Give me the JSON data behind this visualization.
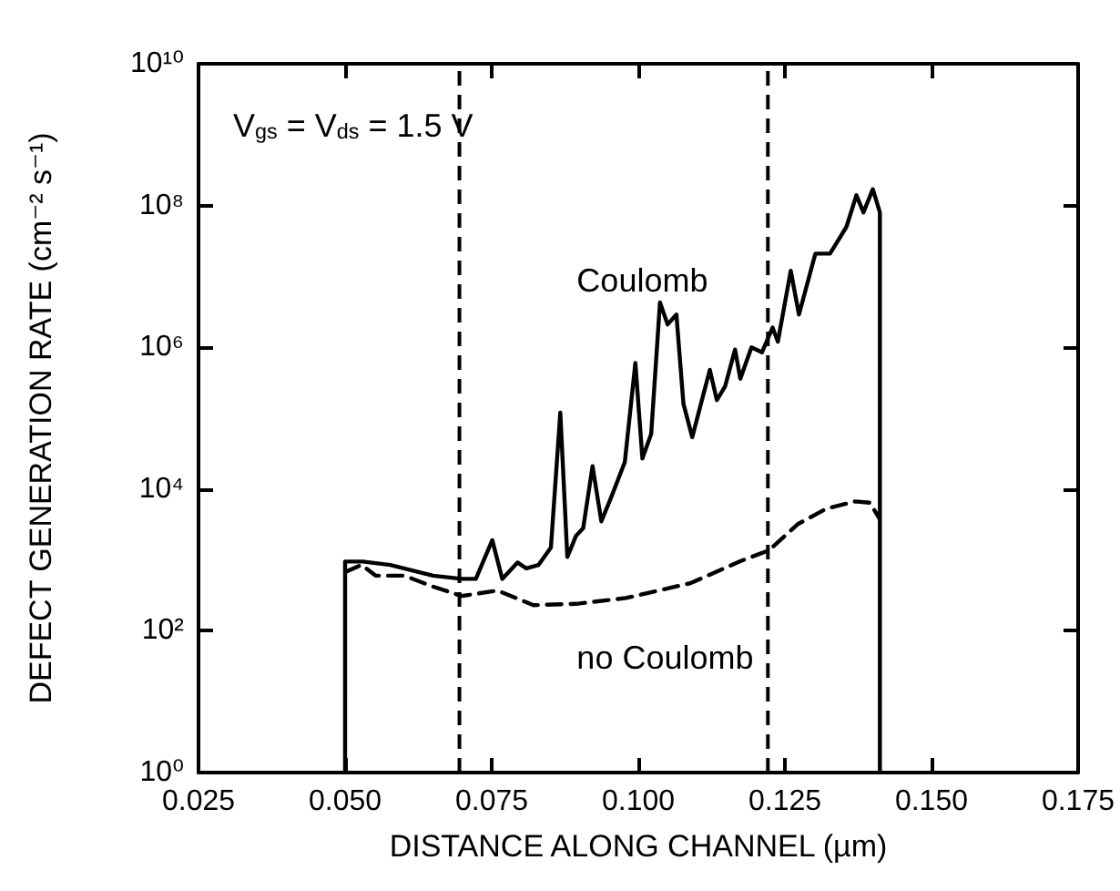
{
  "chart_data": {
    "type": "line",
    "xlabel": "DISTANCE ALONG CHANNEL (µm)",
    "ylabel": "DEFECT GENERATION RATE (cm⁻² s⁻¹)",
    "annotations": [
      "V$_{gs}$ = V$_{ds}$ = 1.5 V"
    ],
    "log": "y",
    "grid": false,
    "legend": false,
    "marker": "none",
    "xlim": [
      0.025,
      0.175
    ],
    "xticks": [
      0.025,
      {
        "value": 0.05,
        "label": "0.050"
      },
      0.075,
      {
        "value": 0.1,
        "label": "0.100"
      },
      0.125,
      {
        "value": 0.15,
        "label": "0.150"
      },
      0.175
    ],
    "ylim": [
      1,
      10000000000
    ],
    "yticks": [
      {
        "value": 1,
        "label": "10⁰"
      },
      {
        "value": 100,
        "label": "10²"
      },
      {
        "value": 10000,
        "label": "10⁴"
      },
      {
        "value": 1000000,
        "label": "10⁶"
      },
      {
        "value": 100000000,
        "label": "10⁸"
      },
      {
        "value": 10000000000,
        "label": "10¹⁰"
      }
    ],
    "ref_lines": [
      {
        "axis": "x",
        "value": 0.0695,
        "label": null,
        "color": "#000000",
        "line_style": "dashed"
      },
      {
        "axis": "x",
        "value": 0.1221,
        "label": null,
        "color": "#000000",
        "line_style": "dashed"
      }
    ],
    "series": [
      {
        "name": "Coulomb",
        "color": "#000000",
        "line_style": "solid",
        "x": [
          0.05,
          0.05,
          0.053,
          0.0577,
          0.065,
          0.0699,
          0.0723,
          0.0751,
          0.0768,
          0.0794,
          0.0809,
          0.083,
          0.0851,
          0.0867,
          0.0879,
          0.0894,
          0.0906,
          0.0922,
          0.0937,
          0.0955,
          0.0977,
          0.0995,
          0.1007,
          0.1022,
          0.1037,
          0.105,
          0.1065,
          0.1077,
          0.1092,
          0.1122,
          0.1134,
          0.1148,
          0.1165,
          0.1174,
          0.1193,
          0.1211,
          0.1229,
          0.1238,
          0.126,
          0.1274,
          0.1302,
          0.1327,
          0.1355,
          0.1372,
          0.1384,
          0.14,
          0.1412,
          0.1412
        ],
        "values": [
          1,
          950,
          950,
          850,
          600,
          540,
          540,
          1900,
          540,
          920,
          760,
          850,
          1500,
          120000,
          1100,
          2200,
          2800,
          21000,
          3500,
          8100,
          24000,
          600000,
          27000,
          60000,
          4300000,
          2100000,
          2900000,
          160000,
          54000,
          480000,
          180000,
          280000,
          930000,
          360000,
          1000000,
          850000,
          1900000,
          1200000,
          12000000,
          2900000,
          21000000,
          21000000,
          50000000,
          140000000,
          80000000,
          170000000,
          80000000,
          1
        ]
      },
      {
        "name": "no Coulomb",
        "color": "#000000",
        "line_style": "dashed",
        "x": [
          0.0501,
          0.0528,
          0.0552,
          0.0601,
          0.065,
          0.0699,
          0.076,
          0.0821,
          0.0894,
          0.0979,
          0.1089,
          0.1174,
          0.1223,
          0.1272,
          0.1321,
          0.137,
          0.1395,
          0.141
        ],
        "values": [
          680,
          850,
          600,
          600,
          420,
          310,
          370,
          230,
          240,
          290,
          470,
          960,
          1370,
          3200,
          5300,
          6700,
          6400,
          4000
        ]
      }
    ]
  }
}
